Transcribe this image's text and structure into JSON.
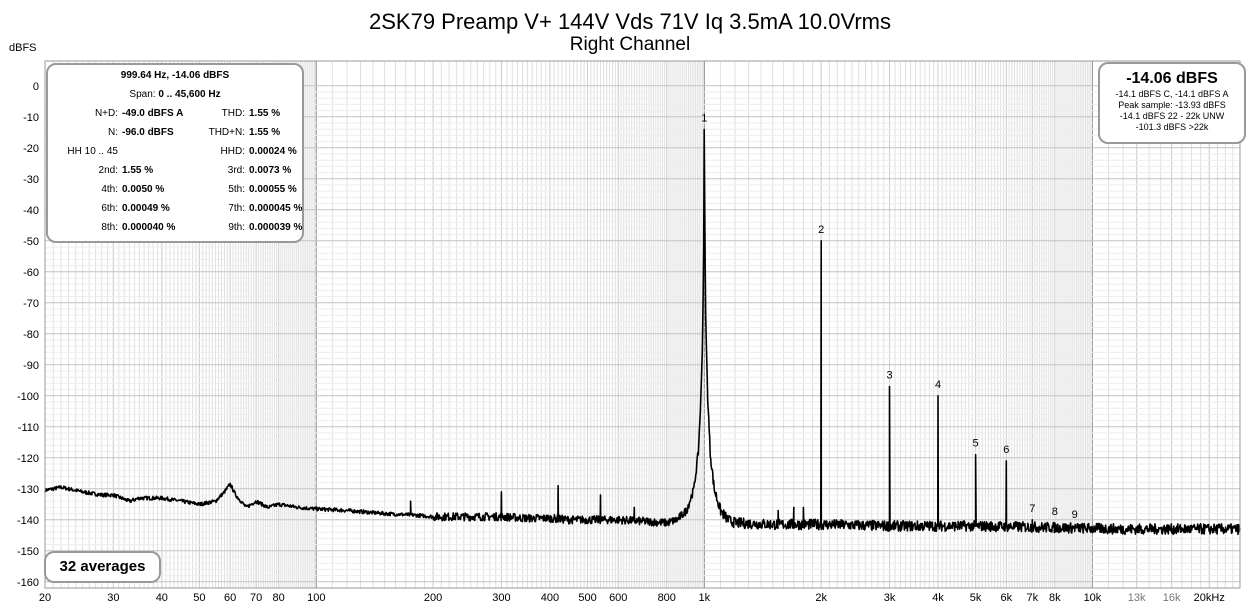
{
  "chart_data": {
    "type": "line",
    "title": "2SK79 Preamp V+ 144V Vds 71V Iq 3.5mA 10.0Vrms",
    "subtitle": "Right Channel",
    "ylabel": "dBFS",
    "xlabel": "",
    "x_scale": "log",
    "xlim": [
      20,
      24000
    ],
    "ylim": [
      -162,
      8
    ],
    "y_ticks": [
      0,
      -10,
      -20,
      -30,
      -40,
      -50,
      -60,
      -70,
      -80,
      -90,
      -100,
      -110,
      -120,
      -130,
      -140,
      -150,
      -160
    ],
    "x_ticks": [
      {
        "value": 20,
        "label": "20"
      },
      {
        "value": 30,
        "label": "30"
      },
      {
        "value": 40,
        "label": "40"
      },
      {
        "value": 50,
        "label": "50"
      },
      {
        "value": 60,
        "label": "60"
      },
      {
        "value": 70,
        "label": "70"
      },
      {
        "value": 80,
        "label": "80"
      },
      {
        "value": 100,
        "label": "100"
      },
      {
        "value": 200,
        "label": "200"
      },
      {
        "value": 300,
        "label": "300"
      },
      {
        "value": 400,
        "label": "400"
      },
      {
        "value": 500,
        "label": "500"
      },
      {
        "value": 600,
        "label": "600"
      },
      {
        "value": 800,
        "label": "800"
      },
      {
        "value": 1000,
        "label": "1k"
      },
      {
        "value": 2000,
        "label": "2k"
      },
      {
        "value": 3000,
        "label": "3k"
      },
      {
        "value": 4000,
        "label": "4k"
      },
      {
        "value": 5000,
        "label": "5k"
      },
      {
        "value": 6000,
        "label": "6k"
      },
      {
        "value": 7000,
        "label": "7k"
      },
      {
        "value": 8000,
        "label": "8k"
      },
      {
        "value": 10000,
        "label": "10k"
      },
      {
        "value": 13000,
        "label": "13k"
      },
      {
        "value": 16000,
        "label": "16k"
      },
      {
        "value": 20000,
        "label": "20kHz"
      }
    ],
    "grid": true,
    "noise_floor": [
      [
        20,
        -130.5
      ],
      [
        22,
        -129.5
      ],
      [
        25,
        -131
      ],
      [
        28,
        -132
      ],
      [
        30,
        -132
      ],
      [
        33,
        -134
      ],
      [
        35,
        -133
      ],
      [
        40,
        -133
      ],
      [
        45,
        -134
      ],
      [
        50,
        -135
      ],
      [
        55,
        -134
      ],
      [
        58,
        -131
      ],
      [
        60,
        -128.5
      ],
      [
        62,
        -132
      ],
      [
        66,
        -136
      ],
      [
        70,
        -134
      ],
      [
        75,
        -136
      ],
      [
        80,
        -135
      ],
      [
        90,
        -136
      ],
      [
        100,
        -136.5
      ],
      [
        120,
        -137
      ],
      [
        150,
        -138
      ],
      [
        180,
        -138.5
      ],
      [
        200,
        -139
      ],
      [
        250,
        -139
      ],
      [
        300,
        -139
      ],
      [
        350,
        -139.5
      ],
      [
        400,
        -139.5
      ],
      [
        450,
        -140
      ],
      [
        500,
        -140
      ],
      [
        600,
        -140
      ],
      [
        700,
        -140.5
      ],
      [
        800,
        -141
      ],
      [
        850,
        -140
      ],
      [
        900,
        -137
      ],
      [
        940,
        -130
      ],
      [
        965,
        -118
      ],
      [
        980,
        -100
      ],
      [
        990,
        -80
      ],
      [
        996,
        -55
      ],
      [
        1000,
        -14.06
      ],
      [
        1004,
        -55
      ],
      [
        1010,
        -80
      ],
      [
        1020,
        -100
      ],
      [
        1035,
        -118
      ],
      [
        1060,
        -130
      ],
      [
        1100,
        -137
      ],
      [
        1150,
        -140
      ],
      [
        1200,
        -141
      ],
      [
        1500,
        -141.5
      ],
      [
        2000,
        -141.5
      ],
      [
        3000,
        -142
      ],
      [
        5000,
        -142
      ],
      [
        8000,
        -142.5
      ],
      [
        12000,
        -143
      ],
      [
        16000,
        -143
      ],
      [
        24000,
        -143
      ]
    ],
    "spurs": [
      [
        300,
        -131
      ],
      [
        420,
        -129
      ],
      [
        540,
        -132
      ],
      [
        660,
        -136
      ],
      [
        175,
        -134
      ],
      [
        1700,
        -136
      ],
      [
        1800,
        -136
      ],
      [
        1550,
        -137
      ]
    ],
    "harmonics": [
      {
        "label": "1",
        "freq": 1000,
        "level": -14.06
      },
      {
        "label": "2",
        "freq": 2000,
        "level": -50
      },
      {
        "label": "3",
        "freq": 3000,
        "level": -97
      },
      {
        "label": "4",
        "freq": 4000,
        "level": -100
      },
      {
        "label": "5",
        "freq": 5000,
        "level": -119
      },
      {
        "label": "6",
        "freq": 6000,
        "level": -121
      },
      {
        "label": "7",
        "freq": 7000,
        "level": -140
      },
      {
        "label": "8",
        "freq": 8000,
        "level": -141
      },
      {
        "label": "9",
        "freq": 9000,
        "level": -142
      }
    ]
  },
  "stats": {
    "peak": "999.64 Hz, -14.06 dBFS",
    "span_label": "Span:",
    "span_value": "0 .. 45,600 Hz",
    "rows": [
      {
        "k1": "N+D:",
        "v1": "-49.0 dBFS A",
        "k2": "THD:",
        "v2": "1.55 %"
      },
      {
        "k1": "N:",
        "v1": "-96.0 dBFS",
        "k2": "THD+N:",
        "v2": "1.55 %"
      },
      {
        "k1": "HH 10 .. 45",
        "v1": "",
        "k2": "HHD:",
        "v2": "0.00024 %"
      },
      {
        "k1": "2nd:",
        "v1": "1.55 %",
        "k2": "3rd:",
        "v2": "0.0073 %"
      },
      {
        "k1": "4th:",
        "v1": "0.0050 %",
        "k2": "5th:",
        "v2": "0.00055 %"
      },
      {
        "k1": "6th:",
        "v1": "0.00049 %",
        "k2": "7th:",
        "v2": "0.000045 %"
      },
      {
        "k1": "8th:",
        "v1": "0.000040 %",
        "k2": "9th:",
        "v2": "0.000039 %"
      }
    ]
  },
  "level_box": {
    "main": "-14.06 dBFS",
    "line1": "-14.1 dBFS C, -14.1 dBFS A",
    "line2": "Peak sample: -13.93 dBFS",
    "line3": "-14.1 dBFS 22 - 22k UNW",
    "line4": "-101.3 dBFS >22k"
  },
  "averages": "32 averages",
  "colors": {
    "trace": "#000000",
    "grid_major": "#bdbdbd",
    "grid_minor": "#e2e2e2",
    "box_border": "#999999"
  }
}
